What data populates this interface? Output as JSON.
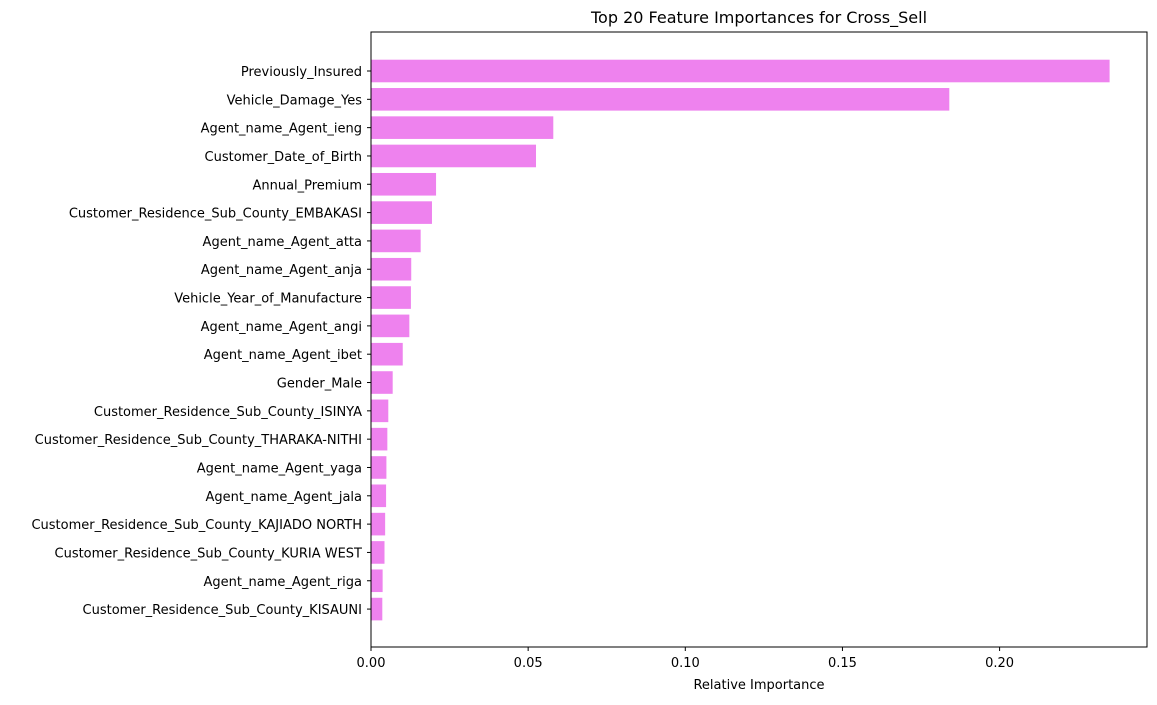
{
  "chart_data": {
    "type": "bar",
    "orientation": "horizontal",
    "title": "Top 20 Feature Importances for Cross_Sell",
    "xlabel": "Relative Importance",
    "ylabel": "",
    "xlim": [
      0,
      0.2469
    ],
    "xticks": [
      0.0,
      0.05,
      0.1,
      0.15,
      0.2
    ],
    "xtick_labels": [
      "0.00",
      "0.05",
      "0.10",
      "0.15",
      "0.20"
    ],
    "grid": false,
    "bar_color": "#ee82ee",
    "categories": [
      "Previously_Insured",
      "Vehicle_Damage_Yes",
      "Agent_name_Agent_ieng",
      "Customer_Date_of_Birth",
      "Annual_Premium",
      "Customer_Residence_Sub_County_EMBAKASI",
      "Agent_name_Agent_atta",
      "Agent_name_Agent_anja",
      "Vehicle_Year_of_Manufacture",
      "Agent_name_Agent_angi",
      "Agent_name_Agent_ibet",
      "Gender_Male",
      "Customer_Residence_Sub_County_ISINYA",
      "Customer_Residence_Sub_County_THARAKA-NITHI",
      "Agent_name_Agent_yaga",
      "Agent_name_Agent_jala",
      "Customer_Residence_Sub_County_KAJIADO NORTH",
      "Customer_Residence_Sub_County_KURIA WEST",
      "Agent_name_Agent_riga",
      "Customer_Residence_Sub_County_KISAUNI"
    ],
    "values": [
      0.235,
      0.184,
      0.058,
      0.0525,
      0.0207,
      0.0194,
      0.0158,
      0.0128,
      0.0127,
      0.0122,
      0.0101,
      0.0069,
      0.0055,
      0.0052,
      0.0049,
      0.0048,
      0.0045,
      0.0043,
      0.0037,
      0.0036
    ]
  }
}
